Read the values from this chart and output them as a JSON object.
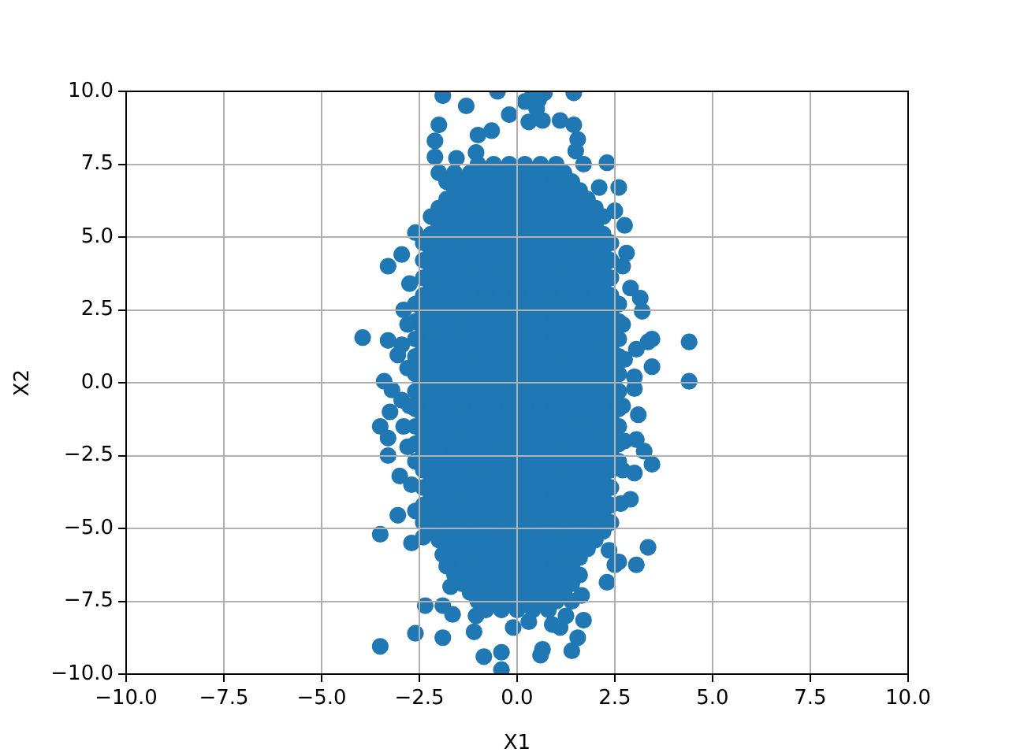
{
  "chart_data": {
    "type": "scatter",
    "xlabel": "X1",
    "ylabel": "X2",
    "xlim": [
      -10,
      10
    ],
    "ylim": [
      -10,
      10
    ],
    "xticks": [
      {
        "value": -10,
        "label": "−10.0"
      },
      {
        "value": -7.5,
        "label": "−7.5"
      },
      {
        "value": -5,
        "label": "−5.0"
      },
      {
        "value": -2.5,
        "label": "−2.5"
      },
      {
        "value": 0,
        "label": "0.0"
      },
      2.5,
      {
        "value": 5,
        "label": "5.0"
      },
      7.5,
      {
        "value": 10,
        "label": "10.0"
      }
    ],
    "yticks": [
      {
        "value": -10,
        "label": "−10.0"
      },
      {
        "value": -7.5,
        "label": "−7.5"
      },
      {
        "value": -5,
        "label": "−5.0"
      },
      {
        "value": -2.5,
        "label": "−2.5"
      },
      {
        "value": 0,
        "label": "0.0"
      },
      2.5,
      {
        "value": 5,
        "label": "5.0"
      },
      7.5,
      {
        "value": 10,
        "label": "10.0"
      }
    ],
    "grid": true,
    "marker": "circle",
    "color": "#1f77b4",
    "x": [
      -1,
      -0.6,
      -0.2,
      0.2,
      0.6,
      1,
      -1.6,
      -1.2,
      -0.8,
      -0.4,
      0,
      0.4,
      0.8,
      1.2,
      -1.8,
      -1.4,
      -1,
      -0.6,
      -0.2,
      0.2,
      0.6,
      1,
      1.4,
      -1.6,
      -1.2,
      -0.8,
      -0.4,
      0,
      0.4,
      0.8,
      1.2,
      1.6,
      -1.8,
      -1.4,
      -1,
      -0.6,
      -0.2,
      0.2,
      0.6,
      1,
      1.4,
      1.8,
      -2,
      -1.6,
      -1.2,
      -0.8,
      -0.4,
      0,
      0.4,
      0.8,
      1.2,
      1.6,
      2,
      -2.2,
      -1.8,
      -1.4,
      -1,
      -0.6,
      -0.2,
      0.2,
      0.6,
      1,
      1.4,
      1.8,
      2.2,
      -2,
      -1.6,
      -1.2,
      -0.8,
      -0.4,
      0,
      0.4,
      0.8,
      1.2,
      1.6,
      2,
      -2.2,
      -1.8,
      -1.4,
      -1,
      -0.6,
      -0.2,
      0.2,
      0.6,
      1,
      1.4,
      1.8,
      2.2,
      -2.4,
      -2,
      -1.6,
      -1.2,
      -0.8,
      -0.4,
      0,
      0.4,
      0.8,
      1.2,
      1.6,
      2,
      2.4,
      -2.2,
      -1.8,
      -1.4,
      -1,
      -0.6,
      -0.2,
      0.2,
      0.6,
      1,
      1.4,
      1.8,
      2.2,
      -2.4,
      -2,
      -1.6,
      -1.2,
      -0.8,
      -0.4,
      0,
      0.4,
      0.8,
      1.2,
      1.6,
      2,
      2.4,
      -2.2,
      -1.8,
      -1.4,
      -1,
      -0.6,
      -0.2,
      0.2,
      0.6,
      1,
      1.4,
      1.8,
      2.2,
      -2.4,
      -2,
      -1.6,
      -1.2,
      -0.8,
      -0.4,
      0,
      0.4,
      0.8,
      1.2,
      1.6,
      2,
      2.4,
      -2.2,
      -1.8,
      -1.4,
      -1,
      -0.6,
      -0.2,
      0.2,
      0.6,
      1,
      1.4,
      1.8,
      2.2,
      -2.4,
      -2,
      -1.6,
      -1.2,
      -0.8,
      -0.4,
      0,
      0.4,
      0.8,
      1.2,
      1.6,
      2,
      2.4,
      -2.6,
      -2.2,
      -1.8,
      -1.4,
      -1,
      -0.6,
      -0.2,
      0.2,
      0.6,
      1,
      1.4,
      1.8,
      2.2,
      2.6,
      -2.4,
      -2,
      -1.6,
      -1.2,
      -0.8,
      -0.4,
      0,
      0.4,
      0.8,
      1.2,
      1.6,
      2,
      2.4,
      -2.6,
      -2.2,
      -1.8,
      -1.4,
      -1,
      -0.6,
      -0.2,
      0.2,
      0.6,
      1,
      1.4,
      1.8,
      2.2,
      2.6,
      -2.4,
      -2,
      -1.6,
      -1.2,
      -0.8,
      -0.4,
      0,
      0.4,
      0.8,
      1.2,
      1.6,
      2,
      2.4,
      -2.6,
      -2.2,
      -1.8,
      -1.4,
      -1,
      -0.6,
      -0.2,
      0.2,
      0.6,
      1,
      1.4,
      1.8,
      2.2,
      2.6,
      -2.4,
      -2,
      -1.6,
      -1.2,
      -0.8,
      -0.4,
      0,
      0.4,
      0.8,
      1.2,
      1.6,
      2,
      2.4,
      -2.6,
      -2.2,
      -1.8,
      -1.4,
      -1,
      -0.6,
      -0.2,
      0.2,
      0.6,
      1,
      1.4,
      1.8,
      2.2,
      2.6,
      -2.4,
      -2,
      -1.6,
      -1.2,
      -0.8,
      -0.4,
      0,
      0.4,
      0.8,
      1.2,
      1.6,
      2,
      2.4,
      -2.6,
      -2.2,
      -1.8,
      -1.4,
      -1,
      -0.6,
      -0.2,
      0.2,
      0.6,
      1,
      1.4,
      1.8,
      2.2,
      2.6,
      -2.4,
      -2,
      -1.6,
      -1.2,
      -0.8,
      -0.4,
      0,
      0.4,
      0.8,
      1.2,
      1.6,
      2,
      2.4,
      -2.6,
      -2.2,
      -1.8,
      -1.4,
      -1,
      -0.6,
      -0.2,
      0.2,
      0.6,
      1,
      1.4,
      1.8,
      2.2,
      2.6,
      -2.4,
      -2,
      -1.6,
      -1.2,
      -0.8,
      -0.4,
      0,
      0.4,
      0.8,
      1.2,
      1.6,
      2,
      2.4,
      -2.6,
      -2.2,
      -1.8,
      -1.4,
      -1,
      -0.6,
      -0.2,
      0.2,
      0.6,
      1,
      1.4,
      1.8,
      2.2,
      2.6,
      -2.4,
      -2,
      -1.6,
      -1.2,
      -0.8,
      -0.4,
      0,
      0.4,
      0.8,
      1.2,
      1.6,
      2,
      2.4,
      -2.6,
      -2.2,
      -1.8,
      -1.4,
      -1,
      -0.6,
      -0.2,
      0.2,
      0.6,
      1,
      1.4,
      1.8,
      2.2,
      2.6,
      -2.4,
      -2,
      -1.6,
      -1.2,
      -0.8,
      -0.4,
      0,
      0.4,
      0.8,
      1.2,
      1.6,
      2,
      2.4,
      -2.6,
      -2.2,
      -1.8,
      -1.4,
      -1,
      -0.6,
      -0.2,
      0.2,
      0.6,
      1,
      1.4,
      1.8,
      2.2,
      2.6,
      -2.4,
      -2,
      -1.6,
      -1.2,
      -0.8,
      -0.4,
      0,
      0.4,
      0.8,
      1.2,
      1.6,
      2,
      2.4,
      -2.6,
      -2.2,
      -1.8,
      -1.4,
      -1,
      -0.6,
      -0.2,
      0.2,
      0.6,
      1,
      1.4,
      1.8,
      2.2,
      2.6,
      -2.4,
      -2,
      -1.6,
      -1.2,
      -0.8,
      -0.4,
      0,
      0.4,
      0.8,
      1.2,
      1.6,
      2,
      2.4,
      -2.2,
      -1.8,
      -1.4,
      -1,
      -0.6,
      -0.2,
      0.2,
      0.6,
      1,
      1.4,
      1.8,
      2.2,
      -2.4,
      -2,
      -1.6,
      -1.2,
      -0.8,
      -0.4,
      0,
      0.4,
      0.8,
      1.2,
      1.6,
      2,
      2.4,
      -2.2,
      -1.8,
      -1.4,
      -1,
      -0.6,
      -0.2,
      0.2,
      0.6,
      1,
      1.4,
      1.8,
      2.2,
      -2.4,
      -2,
      -1.6,
      -1.2,
      -0.8,
      -0.4,
      0,
      0.4,
      0.8,
      1.2,
      1.6,
      2,
      2.4,
      -2.2,
      -1.8,
      -1.4,
      -1,
      -0.6,
      -0.2,
      0.2,
      0.6,
      1,
      1.4,
      1.8,
      2.2,
      -2.4,
      -2,
      -1.6,
      -1.2,
      -0.8,
      -0.4,
      0,
      0.4,
      0.8,
      1.2,
      1.6,
      2,
      2.4,
      -2.2,
      -1.8,
      -1.4,
      -1,
      -0.6,
      -0.2,
      0.2,
      0.6,
      1,
      1.4,
      1.8,
      2.2,
      -2,
      -1.6,
      -1.2,
      -0.8,
      -0.4,
      0,
      0.4,
      0.8,
      1.2,
      1.6,
      2,
      -1.8,
      -1.4,
      -1,
      -0.6,
      -0.2,
      0.2,
      0.6,
      1,
      1.4,
      1.8,
      -1.6,
      -1.2,
      -0.8,
      -0.4,
      0,
      0.4,
      0.8,
      1.2,
      1.6,
      -1.8,
      -1.4,
      -1,
      -0.6,
      -0.2,
      0.2,
      0.6,
      1,
      1.4,
      -1.6,
      -1.2,
      -0.8,
      -0.4,
      0,
      0.4,
      0.8,
      1.2,
      1.6,
      -1.4,
      -1,
      -0.6,
      -0.2,
      0.2,
      0.6,
      1,
      1.4,
      -1.2,
      -0.8,
      -0.4,
      0,
      0.4,
      0.8,
      1.2,
      -1,
      -0.6,
      -0.2,
      0.2,
      0.6,
      1,
      1.4,
      -0.8,
      -0.4,
      0,
      0.4,
      0.8,
      -1.9,
      -1.3,
      -0.5,
      0.4,
      0.55,
      0.7,
      1.45,
      -2,
      -2.1,
      -2.1,
      -2,
      -1.55,
      -1,
      -0.65,
      -0.2,
      0.3,
      0.65,
      1.1,
      1.45,
      1.55,
      1.5,
      1.7,
      2.3,
      2.6,
      2.5,
      2.75,
      2.1,
      2.8,
      -3.3,
      -2.95,
      -2.6,
      -3.95,
      -3.3,
      -2.9,
      -3.4,
      -3.2,
      -3.25,
      -3.5,
      -3.3,
      -3.3,
      -3,
      -2.95,
      -3.05,
      -2.95,
      -2.9,
      2.9,
      3.15,
      3.2,
      3.45,
      4.4,
      4.4,
      3.45,
      3.35,
      3.05,
      3,
      3,
      3.1,
      3.05,
      3.25,
      3.45,
      3,
      2.9,
      2.65,
      -3.5,
      -3.05,
      -2.7,
      -2.4,
      -2.35,
      -1.9,
      -1.65,
      -1.7,
      -1.9,
      -2.6,
      -1.9,
      -3.5,
      -1.05,
      -1.1,
      -0.85,
      -0.4,
      -0.4,
      0.65,
      0.6,
      1.4,
      1.55,
      1.7,
      1.65,
      1.25,
      1.1,
      2.5,
      3.05,
      3.35,
      2.3,
      2.6,
      2.35,
      2.7,
      2.7,
      2.75,
      2.7,
      2.75,
      2.7,
      -2.75,
      -2.8,
      -2.8,
      -2.75,
      -2.8,
      -2.7,
      -2.6,
      -1.05,
      0.2,
      0.5,
      -0.1,
      0.3,
      0.9
    ],
    "values": [
      7.5,
      7.5,
      7.5,
      7.5,
      7.5,
      7.5,
      7.2,
      7.2,
      7.2,
      7.2,
      7.2,
      7.2,
      7.2,
      7.2,
      6.9,
      6.9,
      6.9,
      6.9,
      6.9,
      6.9,
      6.9,
      6.9,
      6.9,
      6.6,
      6.6,
      6.6,
      6.6,
      6.6,
      6.6,
      6.6,
      6.6,
      6.6,
      6.3,
      6.3,
      6.3,
      6.3,
      6.3,
      6.3,
      6.3,
      6.3,
      6.3,
      6.3,
      6,
      6,
      6,
      6,
      6,
      6,
      6,
      6,
      6,
      6,
      6,
      5.7,
      5.7,
      5.7,
      5.7,
      5.7,
      5.7,
      5.7,
      5.7,
      5.7,
      5.7,
      5.7,
      5.7,
      5.4,
      5.4,
      5.4,
      5.4,
      5.4,
      5.4,
      5.4,
      5.4,
      5.4,
      5.4,
      5.4,
      5.1,
      5.1,
      5.1,
      5.1,
      5.1,
      5.1,
      5.1,
      5.1,
      5.1,
      5.1,
      5.1,
      5.1,
      4.8,
      4.8,
      4.8,
      4.8,
      4.8,
      4.8,
      4.8,
      4.8,
      4.8,
      4.8,
      4.8,
      4.8,
      4.8,
      4.5,
      4.5,
      4.5,
      4.5,
      4.5,
      4.5,
      4.5,
      4.5,
      4.5,
      4.5,
      4.5,
      4.5,
      4.2,
      4.2,
      4.2,
      4.2,
      4.2,
      4.2,
      4.2,
      4.2,
      4.2,
      4.2,
      4.2,
      4.2,
      4.2,
      3.9,
      3.9,
      3.9,
      3.9,
      3.9,
      3.9,
      3.9,
      3.9,
      3.9,
      3.9,
      3.9,
      3.9,
      3.6,
      3.6,
      3.6,
      3.6,
      3.6,
      3.6,
      3.6,
      3.6,
      3.6,
      3.6,
      3.6,
      3.6,
      3.6,
      3.3,
      3.3,
      3.3,
      3.3,
      3.3,
      3.3,
      3.3,
      3.3,
      3.3,
      3.3,
      3.3,
      3.3,
      3,
      3,
      3,
      3,
      3,
      3,
      3,
      3,
      3,
      3,
      3,
      3,
      3,
      2.7,
      2.7,
      2.7,
      2.7,
      2.7,
      2.7,
      2.7,
      2.7,
      2.7,
      2.7,
      2.7,
      2.7,
      2.7,
      2.7,
      2.4,
      2.4,
      2.4,
      2.4,
      2.4,
      2.4,
      2.4,
      2.4,
      2.4,
      2.4,
      2.4,
      2.4,
      2.4,
      2.1,
      2.1,
      2.1,
      2.1,
      2.1,
      2.1,
      2.1,
      2.1,
      2.1,
      2.1,
      2.1,
      2.1,
      2.1,
      2.1,
      1.8,
      1.8,
      1.8,
      1.8,
      1.8,
      1.8,
      1.8,
      1.8,
      1.8,
      1.8,
      1.8,
      1.8,
      1.8,
      1.5,
      1.5,
      1.5,
      1.5,
      1.5,
      1.5,
      1.5,
      1.5,
      1.5,
      1.5,
      1.5,
      1.5,
      1.5,
      1.5,
      1.2,
      1.2,
      1.2,
      1.2,
      1.2,
      1.2,
      1.2,
      1.2,
      1.2,
      1.2,
      1.2,
      1.2,
      1.2,
      0.9,
      0.9,
      0.9,
      0.9,
      0.9,
      0.9,
      0.9,
      0.9,
      0.9,
      0.9,
      0.9,
      0.9,
      0.9,
      0.9,
      0.6,
      0.6,
      0.6,
      0.6,
      0.6,
      0.6,
      0.6,
      0.6,
      0.6,
      0.6,
      0.6,
      0.6,
      0.6,
      0.3,
      0.3,
      0.3,
      0.3,
      0.3,
      0.3,
      0.3,
      0.3,
      0.3,
      0.3,
      0.3,
      0.3,
      0.3,
      0.3,
      0,
      0,
      0,
      0,
      0,
      0,
      0,
      0,
      0,
      0,
      0,
      0,
      0,
      -0.3,
      -0.3,
      -0.3,
      -0.3,
      -0.3,
      -0.3,
      -0.3,
      -0.3,
      -0.3,
      -0.3,
      -0.3,
      -0.3,
      -0.3,
      -0.3,
      -0.6,
      -0.6,
      -0.6,
      -0.6,
      -0.6,
      -0.6,
      -0.6,
      -0.6,
      -0.6,
      -0.6,
      -0.6,
      -0.6,
      -0.6,
      -0.9,
      -0.9,
      -0.9,
      -0.9,
      -0.9,
      -0.9,
      -0.9,
      -0.9,
      -0.9,
      -0.9,
      -0.9,
      -0.9,
      -0.9,
      -0.9,
      -1.2,
      -1.2,
      -1.2,
      -1.2,
      -1.2,
      -1.2,
      -1.2,
      -1.2,
      -1.2,
      -1.2,
      -1.2,
      -1.2,
      -1.2,
      -1.5,
      -1.5,
      -1.5,
      -1.5,
      -1.5,
      -1.5,
      -1.5,
      -1.5,
      -1.5,
      -1.5,
      -1.5,
      -1.5,
      -1.5,
      -1.5,
      -1.8,
      -1.8,
      -1.8,
      -1.8,
      -1.8,
      -1.8,
      -1.8,
      -1.8,
      -1.8,
      -1.8,
      -1.8,
      -1.8,
      -1.8,
      -2.1,
      -2.1,
      -2.1,
      -2.1,
      -2.1,
      -2.1,
      -2.1,
      -2.1,
      -2.1,
      -2.1,
      -2.1,
      -2.1,
      -2.1,
      -2.1,
      -2.4,
      -2.4,
      -2.4,
      -2.4,
      -2.4,
      -2.4,
      -2.4,
      -2.4,
      -2.4,
      -2.4,
      -2.4,
      -2.4,
      -2.4,
      -2.7,
      -2.7,
      -2.7,
      -2.7,
      -2.7,
      -2.7,
      -2.7,
      -2.7,
      -2.7,
      -2.7,
      -2.7,
      -2.7,
      -2.7,
      -2.7,
      -3,
      -3,
      -3,
      -3,
      -3,
      -3,
      -3,
      -3,
      -3,
      -3,
      -3,
      -3,
      -3,
      -3.3,
      -3.3,
      -3.3,
      -3.3,
      -3.3,
      -3.3,
      -3.3,
      -3.3,
      -3.3,
      -3.3,
      -3.3,
      -3.3,
      -3.6,
      -3.6,
      -3.6,
      -3.6,
      -3.6,
      -3.6,
      -3.6,
      -3.6,
      -3.6,
      -3.6,
      -3.6,
      -3.6,
      -3.6,
      -3.9,
      -3.9,
      -3.9,
      -3.9,
      -3.9,
      -3.9,
      -3.9,
      -3.9,
      -3.9,
      -3.9,
      -3.9,
      -3.9,
      -4.2,
      -4.2,
      -4.2,
      -4.2,
      -4.2,
      -4.2,
      -4.2,
      -4.2,
      -4.2,
      -4.2,
      -4.2,
      -4.2,
      -4.2,
      -4.5,
      -4.5,
      -4.5,
      -4.5,
      -4.5,
      -4.5,
      -4.5,
      -4.5,
      -4.5,
      -4.5,
      -4.5,
      -4.5,
      -4.8,
      -4.8,
      -4.8,
      -4.8,
      -4.8,
      -4.8,
      -4.8,
      -4.8,
      -4.8,
      -4.8,
      -4.8,
      -4.8,
      -4.8,
      -5.1,
      -5.1,
      -5.1,
      -5.1,
      -5.1,
      -5.1,
      -5.1,
      -5.1,
      -5.1,
      -5.1,
      -5.1,
      -5.1,
      -5.4,
      -5.4,
      -5.4,
      -5.4,
      -5.4,
      -5.4,
      -5.4,
      -5.4,
      -5.4,
      -5.4,
      -5.4,
      -5.7,
      -5.7,
      -5.7,
      -5.7,
      -5.7,
      -5.7,
      -5.7,
      -5.7,
      -5.7,
      -5.7,
      -6,
      -6,
      -6,
      -6,
      -6,
      -6,
      -6,
      -6,
      -6,
      -6.3,
      -6.3,
      -6.3,
      -6.3,
      -6.3,
      -6.3,
      -6.3,
      -6.3,
      -6.3,
      -6.6,
      -6.6,
      -6.6,
      -6.6,
      -6.6,
      -6.6,
      -6.6,
      -6.6,
      -6.6,
      -6.9,
      -6.9,
      -6.9,
      -6.9,
      -6.9,
      -6.9,
      -6.9,
      -6.9,
      -7.2,
      -7.2,
      -7.2,
      -7.2,
      -7.2,
      -7.2,
      -7.2,
      -7.5,
      -7.5,
      -7.5,
      -7.5,
      -7.5,
      -7.5,
      -7.5,
      -7.8,
      -7.8,
      -7.8,
      -7.8,
      -7.8,
      9.85,
      9.5,
      10,
      9.9,
      9.7,
      9.95,
      9.95,
      8.85,
      8.3,
      7.75,
      7.2,
      7.7,
      8.5,
      8.65,
      9.2,
      8.95,
      9,
      9,
      8.85,
      8.35,
      7.95,
      7.5,
      7.55,
      6.7,
      5.9,
      5.4,
      6.7,
      4.45,
      4,
      4.4,
      5.15,
      1.55,
      1.45,
      2.5,
      0.05,
      -0.25,
      -1,
      -1.5,
      -1.9,
      -2.5,
      -3.2,
      1.3,
      0.95,
      -0.6,
      -1.5,
      3.25,
      2.9,
      2.45,
      1.5,
      1.4,
      0.05,
      0.55,
      1.4,
      1.15,
      0.2,
      -0.2,
      -1.1,
      -1.95,
      -2.35,
      -2.8,
      -3.1,
      -4,
      -4.15,
      -5.2,
      -4.55,
      -5.5,
      -5.3,
      -7.65,
      -7.65,
      -7.95,
      -7,
      -5.9,
      -8.6,
      -8.75,
      -9.05,
      -8,
      -8.55,
      -9.4,
      -9.85,
      -9.25,
      -9.15,
      -9.35,
      -9.2,
      -8.75,
      -8.15,
      -7.3,
      -8,
      -8.4,
      -6.25,
      -6.25,
      -5.65,
      -6.85,
      -6.15,
      -5.75,
      4,
      2,
      0.8,
      -0.8,
      -2,
      -3,
      3.4,
      2,
      0.5,
      -0.8,
      -2.2,
      -3.5,
      -4.4,
      7.9,
      9.65,
      9.4,
      -8.4,
      -8.2,
      -8.3
    ]
  }
}
